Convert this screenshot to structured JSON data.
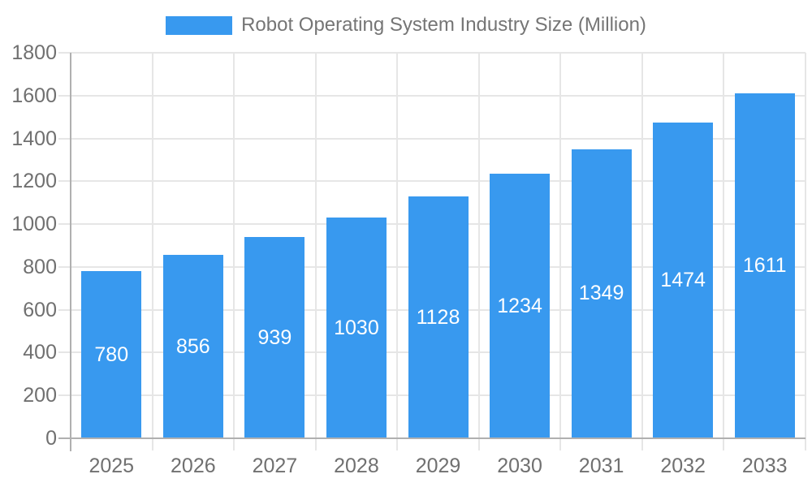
{
  "chart_data": {
    "type": "bar",
    "title": "Robot Operating System Industry Size (Million)",
    "categories": [
      "2025",
      "2026",
      "2027",
      "2028",
      "2029",
      "2030",
      "2031",
      "2032",
      "2033"
    ],
    "values": [
      780,
      856,
      939,
      1030,
      1128,
      1234,
      1349,
      1474,
      1611
    ],
    "xlabel": "",
    "ylabel": "",
    "ylim": [
      0,
      1800
    ],
    "ytick_interval": 200,
    "ytick_labels": [
      "0",
      "200",
      "400",
      "600",
      "800",
      "1000",
      "1200",
      "1400",
      "1600",
      "1800"
    ],
    "grid": "horizontal gridlines plus vertical gridlines at category boundaries",
    "legend_position": "top-center",
    "value_label_position": "inside-center",
    "colors": {
      "bar": "#3899EF",
      "bar_value_text": "#ffffff",
      "gridline": "#e6e6e6",
      "axis_line": "#b0b0b0",
      "axis_text": "#707070",
      "legend_text": "#757575",
      "background": "#ffffff"
    }
  }
}
